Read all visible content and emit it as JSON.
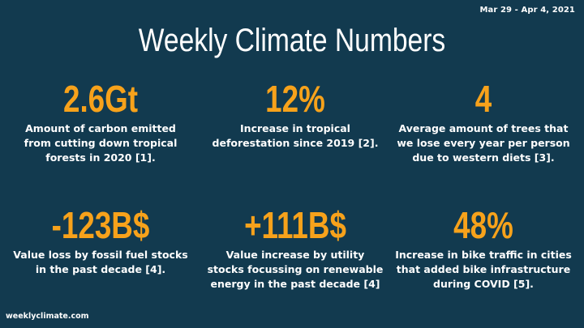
{
  "header": {
    "date_range": "Mar 29 - Apr 4, 2021",
    "title": "Weekly Climate Numbers"
  },
  "stats": [
    {
      "value": "2.6Gt",
      "description": "Amount of carbon emitted from cutting down tropical forests in 2020 [1]."
    },
    {
      "value": "12%",
      "description": "Increase in tropical deforestation since 2019 [2]."
    },
    {
      "value": "4",
      "description": "Average amount of trees that we lose every year per person due to western diets [3]."
    },
    {
      "value": "-123B$",
      "description": "Value loss by fossil fuel stocks in the past decade [4]."
    },
    {
      "value": "+111B$",
      "description": "Value increase by utility stocks focussing on renewable energy in the past decade [4]"
    },
    {
      "value": "48%",
      "description": "Increase in bike traffic in cities that added bike infrastructure during COVID [5]."
    }
  ],
  "footer": {
    "site": "weeklyclimate.com"
  },
  "colors": {
    "background": "#123a4f",
    "accent": "#f7a21b",
    "text": "#ffffff"
  }
}
